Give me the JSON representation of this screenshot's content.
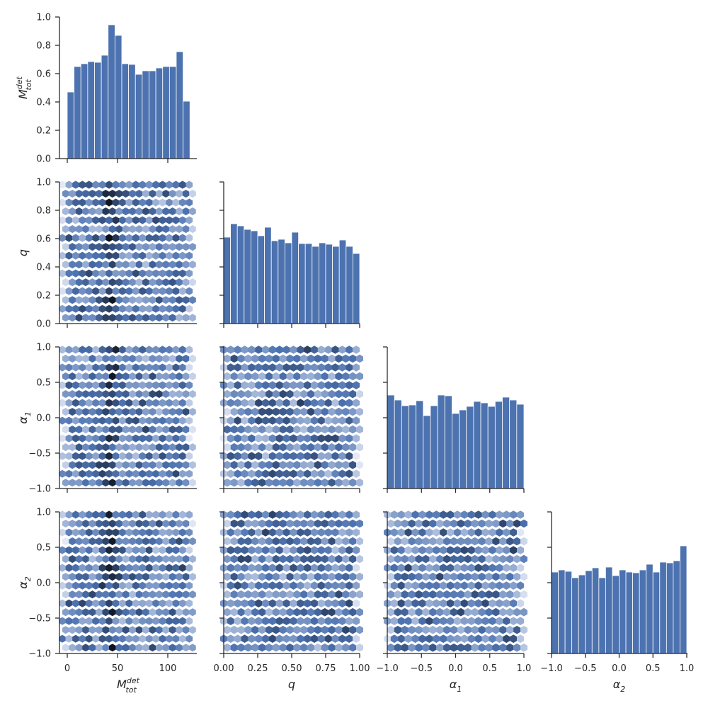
{
  "chart_data": {
    "type": "pairplot",
    "variables": [
      {
        "key": "M",
        "main": "M",
        "sub": "tot",
        "sup": "det",
        "range": [
          -10,
          125
        ],
        "ticks": [
          0,
          50,
          100
        ],
        "tick_labels": [
          "0",
          "50",
          "100"
        ]
      },
      {
        "key": "q",
        "main": "q",
        "sub": "",
        "sup": "",
        "range": [
          0,
          1
        ],
        "ticks": [
          0,
          0.25,
          0.5,
          0.75,
          1
        ],
        "tick_labels": [
          "0.00",
          "0.25",
          "0.50",
          "0.75",
          "1.00"
        ]
      },
      {
        "key": "a1",
        "main": "α",
        "sub": "1",
        "sup": "",
        "range": [
          -1,
          1
        ],
        "ticks": [
          -1,
          -0.5,
          0,
          0.5,
          1
        ],
        "tick_labels": [
          "−1.0",
          "−0.5",
          "0.0",
          "0.5",
          "1.0"
        ]
      },
      {
        "key": "a2",
        "main": "α",
        "sub": "2",
        "sup": "",
        "range": [
          -1,
          1
        ],
        "ticks": [
          -1,
          -0.5,
          0,
          0.5,
          1
        ],
        "tick_labels": [
          "−1.0",
          "−0.5",
          "0.0",
          "0.5",
          "1.0"
        ]
      }
    ],
    "diag_y_ticks": [
      {
        "values": [
          0,
          0.2,
          0.4,
          0.6,
          0.8,
          1.0
        ],
        "labels": [
          "0.0",
          "0.2",
          "0.4",
          "0.6",
          "0.8",
          "1.0"
        ]
      },
      {
        "values": [
          0,
          0.2,
          0.4,
          0.6,
          0.8,
          1.0
        ],
        "labels": [
          "0.0",
          "0.2",
          "0.4",
          "0.6",
          "0.8",
          "1.0"
        ]
      },
      {
        "values": [
          -1,
          -0.5,
          0,
          0.5,
          1
        ],
        "labels": [
          "−1.0",
          "−0.5",
          "0.0",
          "0.5",
          "1.0"
        ]
      },
      {
        "values": [
          -1,
          -0.5,
          0,
          0.5,
          1
        ],
        "labels": [
          "−1.0",
          "−0.5",
          "0.0",
          "0.5",
          "1.0"
        ]
      }
    ],
    "histograms": [
      {
        "var": "M",
        "bin_start": 0,
        "bin_end": 122,
        "fraction_of_height": [
          0.47,
          0.65,
          0.67,
          0.685,
          0.68,
          0.73,
          0.945,
          0.87,
          0.67,
          0.665,
          0.595,
          0.62,
          0.62,
          0.64,
          0.65,
          0.65,
          0.755,
          0.405
        ]
      },
      {
        "var": "q",
        "bin_start": 0,
        "bin_end": 1,
        "fraction_of_height": [
          0.61,
          0.705,
          0.69,
          0.665,
          0.655,
          0.62,
          0.68,
          0.585,
          0.595,
          0.57,
          0.645,
          0.565,
          0.565,
          0.545,
          0.57,
          0.56,
          0.545,
          0.59,
          0.545,
          0.495
        ]
      },
      {
        "var": "a1",
        "bin_start": -1,
        "bin_end": 1,
        "fraction_of_height": [
          0.66,
          0.625,
          0.585,
          0.59,
          0.62,
          0.515,
          0.585,
          0.66,
          0.655,
          0.53,
          0.555,
          0.58,
          0.615,
          0.605,
          0.58,
          0.615,
          0.645,
          0.625,
          0.595
        ]
      },
      {
        "var": "a2",
        "bin_start": -1,
        "bin_end": 1,
        "fraction_of_height": [
          0.575,
          0.59,
          0.58,
          0.535,
          0.555,
          0.585,
          0.605,
          0.535,
          0.61,
          0.55,
          0.59,
          0.575,
          0.57,
          0.59,
          0.63,
          0.575,
          0.645,
          0.64,
          0.655,
          0.76
        ]
      }
    ],
    "hexbin_panels": [
      {
        "x": "M",
        "y": "q",
        "dense_band_x": 43
      },
      {
        "x": "M",
        "y": "a1",
        "dense_band_x": 43
      },
      {
        "x": "q",
        "y": "a1"
      },
      {
        "x": "M",
        "y": "a2",
        "dense_band_x": 43
      },
      {
        "x": "q",
        "y": "a2"
      },
      {
        "x": "a1",
        "y": "a2"
      }
    ],
    "hexbin_color_light": "#e4e9f5",
    "hexbin_color_mid": "#4c72b0",
    "hexbin_color_dark": "#0d1018",
    "hist_color": "#4c72b0",
    "axis_color": "#262626"
  }
}
